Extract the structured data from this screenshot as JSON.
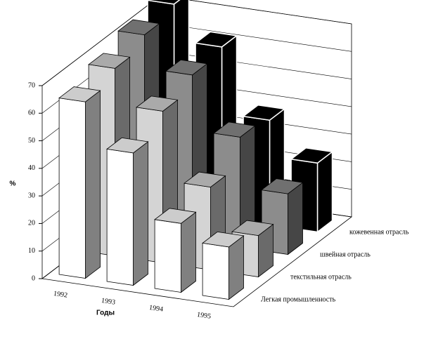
{
  "chart_data": {
    "type": "bar3d",
    "y_label": "%",
    "x_label": "Годы",
    "categories": [
      "1992",
      "1993",
      "1994",
      "1995"
    ],
    "series": [
      {
        "name": "Легкая промышленность",
        "color": "#ffffff",
        "values": [
          64,
          48,
          25,
          19
        ]
      },
      {
        "name": "текстильная отрасль",
        "color": "#d4d4d4",
        "values": [
          68,
          55,
          30,
          15
        ]
      },
      {
        "name": "швейная отрасль",
        "color": "#8c8c8c",
        "values": [
          72,
          60,
          40,
          22
        ]
      },
      {
        "name": "кожевенная отрасль",
        "color": "#000000",
        "values": [
          75,
          62,
          38,
          25
        ]
      }
    ],
    "ylim": [
      0,
      70
    ],
    "yticks": [
      0,
      10,
      20,
      30,
      40,
      50,
      60,
      70
    ],
    "grid": true
  }
}
